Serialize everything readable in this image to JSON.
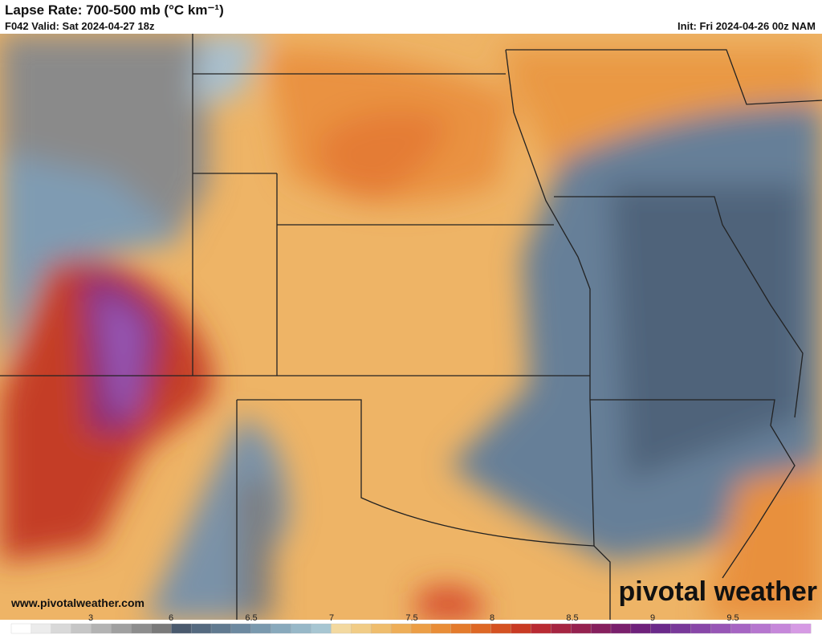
{
  "header": {
    "title": "Lapse Rate: 700-500 mb (°C km⁻¹)",
    "valid": "F042 Valid: Sat 2024-04-27 18z",
    "init": "Init: Fri 2024-04-26 00z NAM"
  },
  "map": {
    "website": "www.pivotalweather.com",
    "logo": "pivotal weather"
  },
  "colorbar": {
    "ticks": [
      3,
      6,
      6.5,
      7,
      7.5,
      8,
      8.5,
      9,
      9.5
    ],
    "colors": [
      "#ffffff",
      "#ececec",
      "#d9d9d9",
      "#c6c6c6",
      "#b3b3b3",
      "#a0a0a0",
      "#8d8d8d",
      "#7a7a7a",
      "#4a5a6e",
      "#556a80",
      "#617a90",
      "#6d89a0",
      "#7a99ae",
      "#88a9bc",
      "#97b8c8",
      "#a7c6d2",
      "#f3d9a0",
      "#f1cc86",
      "#efbd6d",
      "#eeae58",
      "#ec9e46",
      "#e98d37",
      "#e47b2c",
      "#de6825",
      "#d55222",
      "#c93b24",
      "#b92b33",
      "#a62542",
      "#952250",
      "#86205e",
      "#7a206d",
      "#6f217c",
      "#6b2a8b",
      "#79399a",
      "#8847a8",
      "#9756b6",
      "#a665c3",
      "#b676cf",
      "#c687da",
      "#d69ae4"
    ]
  }
}
